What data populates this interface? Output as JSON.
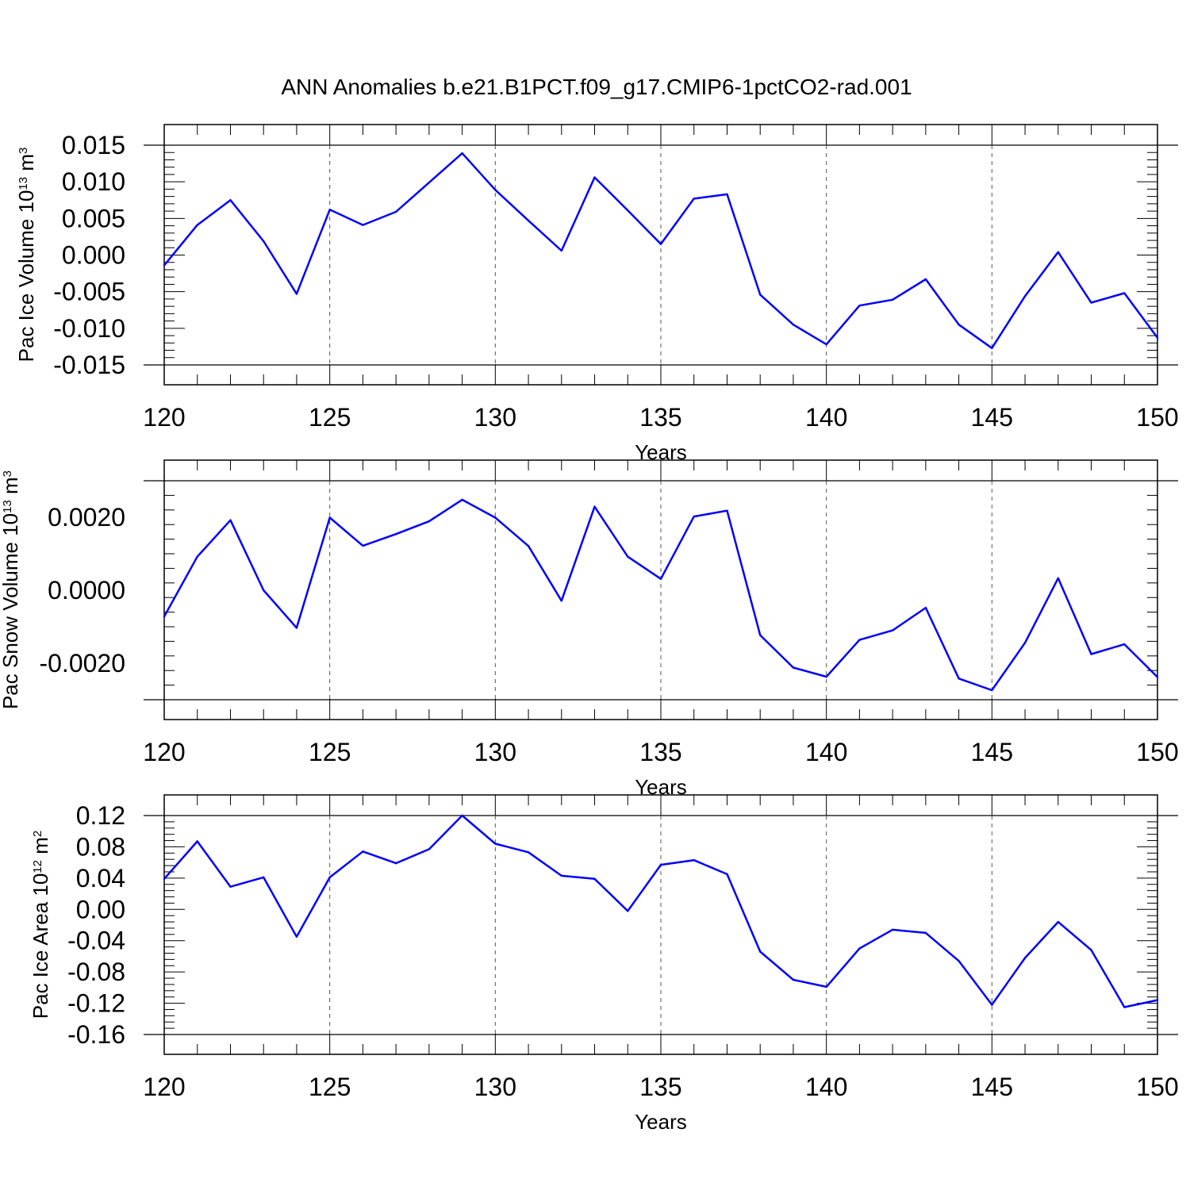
{
  "title": "ANN Anomalies b.e21.B1PCT.f09_g17.CMIP6-1pctCO2-rad.001",
  "colors": {
    "line": "#0000ff",
    "frame": "#000000",
    "grid": "#555555"
  },
  "chart_data": [
    {
      "type": "line",
      "xlabel": "Years",
      "ylabel": {
        "prefix": "Pac Ice Volume 10",
        "exp": "13",
        "unit": " m",
        "unit_exp": "3"
      },
      "xlim": [
        120,
        150
      ],
      "ylim": [
        -0.015,
        0.015
      ],
      "xticks": [
        120,
        125,
        130,
        135,
        140,
        145,
        150
      ],
      "xtick_labels": [
        "120",
        "125",
        "130",
        "135",
        "140",
        "145",
        "150"
      ],
      "yticks": [
        -0.015,
        -0.01,
        -0.005,
        0.0,
        0.005,
        0.01,
        0.015
      ],
      "ytick_labels": [
        "-0.015",
        "-0.010",
        "-0.005",
        "0.000",
        "0.005",
        "0.010",
        "0.015"
      ],
      "ygrid_lines": [
        -0.015,
        0.015
      ],
      "xgrid_dashed": [
        125,
        130,
        135,
        140,
        145
      ],
      "x": [
        120,
        121,
        122,
        123,
        124,
        125,
        126,
        127,
        128,
        129,
        130,
        131,
        132,
        133,
        134,
        135,
        136,
        137,
        138,
        139,
        140,
        141,
        142,
        143,
        144,
        145,
        146,
        147,
        148,
        149,
        150
      ],
      "values": [
        -0.0014,
        0.0041,
        0.0075,
        0.0019,
        -0.0053,
        0.0062,
        0.0041,
        0.0059,
        0.0099,
        0.0139,
        0.0089,
        0.0047,
        0.0006,
        0.0106,
        0.0061,
        0.0015,
        0.0077,
        0.0083,
        -0.0054,
        -0.0095,
        -0.0122,
        -0.0069,
        -0.0061,
        -0.0033,
        -0.0095,
        -0.0127,
        -0.0056,
        0.0004,
        -0.0065,
        -0.0052,
        -0.0113
      ]
    },
    {
      "type": "line",
      "xlabel": "Years",
      "ylabel": {
        "prefix": "Pac Snow Volume 10",
        "exp": "13",
        "unit": " m",
        "unit_exp": "3"
      },
      "xlim": [
        120,
        150
      ],
      "ylim": [
        -0.003,
        0.003
      ],
      "xticks": [
        120,
        125,
        130,
        135,
        140,
        145,
        150
      ],
      "xtick_labels": [
        "120",
        "125",
        "130",
        "135",
        "140",
        "145",
        "150"
      ],
      "yticks": [
        -0.002,
        0.0,
        0.002
      ],
      "ytick_labels": [
        "-0.0020",
        "0.0000",
        "0.0020"
      ],
      "ygrid_lines": [
        -0.003,
        0.003
      ],
      "xgrid_dashed": [
        125,
        130,
        135,
        140,
        145
      ],
      "x": [
        120,
        121,
        122,
        123,
        124,
        125,
        126,
        127,
        128,
        129,
        130,
        131,
        132,
        133,
        134,
        135,
        136,
        137,
        138,
        139,
        140,
        141,
        142,
        143,
        144,
        145,
        146,
        147,
        148,
        149,
        150
      ],
      "values": [
        -0.00072,
        0.00092,
        0.00192,
        0.0,
        -0.00103,
        0.00199,
        0.00122,
        0.00154,
        0.00189,
        0.00248,
        0.00199,
        0.00121,
        -0.00029,
        0.00229,
        0.00092,
        0.00031,
        0.00202,
        0.00218,
        -0.00123,
        -0.00212,
        -0.00237,
        -0.00136,
        -0.0011,
        -0.00048,
        -0.00242,
        -0.00274,
        -0.00144,
        0.00033,
        -0.00175,
        -0.00148,
        -0.00238
      ]
    },
    {
      "type": "line",
      "xlabel": "Years",
      "ylabel": {
        "prefix": "Pac Ice Area 10",
        "exp": "12",
        "unit": " m",
        "unit_exp": "2"
      },
      "xlim": [
        120,
        150
      ],
      "ylim": [
        -0.16,
        0.12
      ],
      "xticks": [
        120,
        125,
        130,
        135,
        140,
        145,
        150
      ],
      "xtick_labels": [
        "120",
        "125",
        "130",
        "135",
        "140",
        "145",
        "150"
      ],
      "yticks": [
        -0.16,
        -0.12,
        -0.08,
        -0.04,
        0.0,
        0.04,
        0.08,
        0.12
      ],
      "ytick_labels": [
        "-0.16",
        "-0.12",
        "-0.08",
        "-0.04",
        "0.00",
        "0.04",
        "0.08",
        "0.12"
      ],
      "ygrid_lines": [
        -0.16,
        0.12
      ],
      "xgrid_dashed": [
        125,
        130,
        135,
        140,
        145
      ],
      "x": [
        120,
        121,
        122,
        123,
        124,
        125,
        126,
        127,
        128,
        129,
        130,
        131,
        132,
        133,
        134,
        135,
        136,
        137,
        138,
        139,
        140,
        141,
        142,
        143,
        144,
        145,
        146,
        147,
        148,
        149,
        150
      ],
      "values": [
        0.039,
        0.087,
        0.029,
        0.041,
        -0.035,
        0.041,
        0.074,
        0.059,
        0.077,
        0.12,
        0.084,
        0.073,
        0.043,
        0.039,
        -0.002,
        0.057,
        0.063,
        0.045,
        -0.054,
        -0.09,
        -0.099,
        -0.05,
        -0.026,
        -0.03,
        -0.066,
        -0.122,
        -0.062,
        -0.016,
        -0.052,
        -0.125,
        -0.116
      ]
    }
  ]
}
